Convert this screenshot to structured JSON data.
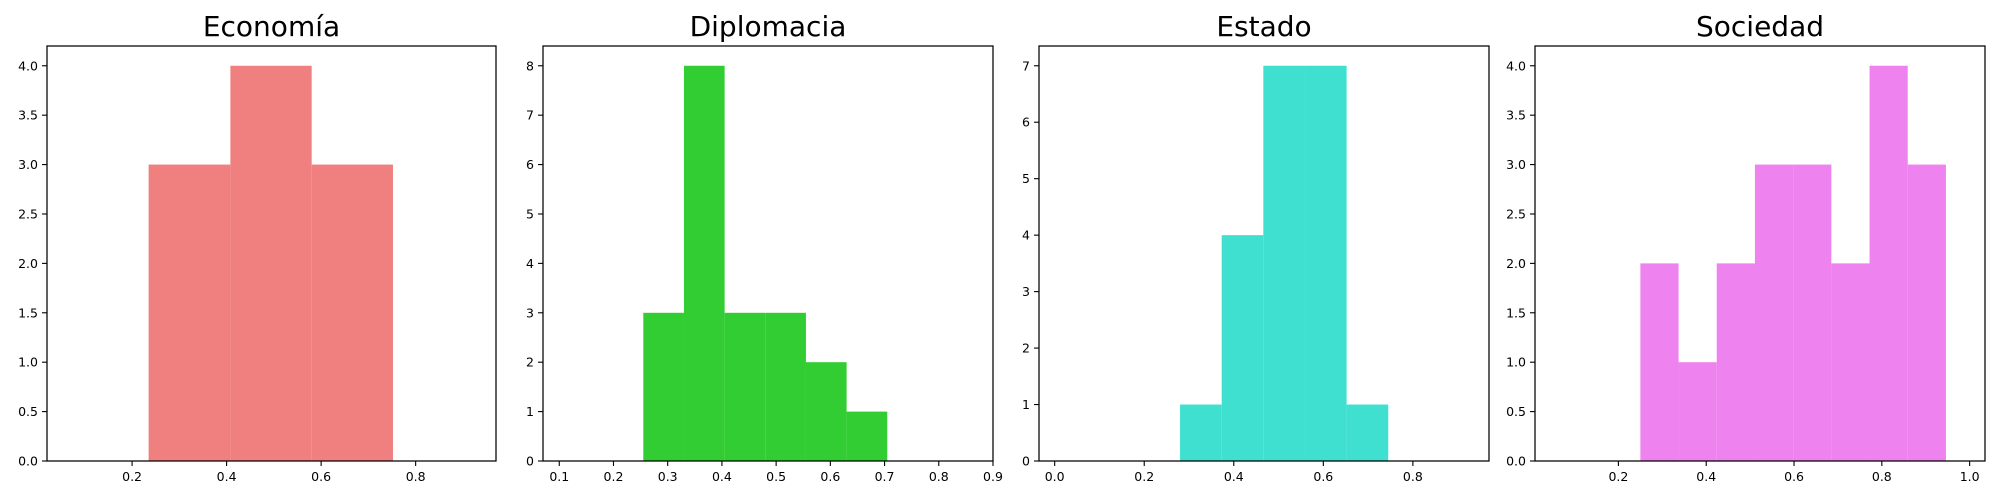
{
  "chart_data": [
    {
      "type": "bar",
      "title": "Economía",
      "color": "#f08080",
      "xlim": [
        0.02,
        0.97
      ],
      "ylim": [
        0,
        4.2
      ],
      "xticks": [
        "0.2",
        "0.4",
        "0.6",
        "0.8"
      ],
      "yticks": [
        "0.0",
        "0.5",
        "1.0",
        "1.5",
        "2.0",
        "2.5",
        "3.0",
        "3.5",
        "4.0"
      ],
      "bins": [
        {
          "x0": 0.235,
          "x1": 0.408,
          "count": 3
        },
        {
          "x0": 0.408,
          "x1": 0.58,
          "count": 4
        },
        {
          "x0": 0.58,
          "x1": 0.752,
          "count": 3
        }
      ]
    },
    {
      "type": "bar",
      "title": "Diplomacia",
      "color": "#32cd32",
      "xlim": [
        0.07,
        0.9
      ],
      "ylim": [
        0,
        8.4
      ],
      "xticks": [
        "0.1",
        "0.2",
        "0.3",
        "0.4",
        "0.5",
        "0.6",
        "0.7",
        "0.8",
        "0.9"
      ],
      "yticks": [
        "0",
        "1",
        "2",
        "3",
        "4",
        "5",
        "6",
        "7",
        "8"
      ],
      "bins": [
        {
          "x0": 0.255,
          "x1": 0.33,
          "count": 3
        },
        {
          "x0": 0.33,
          "x1": 0.405,
          "count": 8
        },
        {
          "x0": 0.405,
          "x1": 0.48,
          "count": 3
        },
        {
          "x0": 0.48,
          "x1": 0.555,
          "count": 3
        },
        {
          "x0": 0.555,
          "x1": 0.63,
          "count": 2
        },
        {
          "x0": 0.63,
          "x1": 0.705,
          "count": 1
        }
      ]
    },
    {
      "type": "bar",
      "title": "Estado",
      "color": "#40e0d0",
      "xlim": [
        -0.035,
        0.97
      ],
      "ylim": [
        0,
        7.35
      ],
      "xticks": [
        "0.0",
        "0.2",
        "0.4",
        "0.6",
        "0.8"
      ],
      "yticks": [
        "0",
        "1",
        "2",
        "3",
        "4",
        "5",
        "6",
        "7"
      ],
      "bins": [
        {
          "x0": 0.28,
          "x1": 0.373,
          "count": 1
        },
        {
          "x0": 0.373,
          "x1": 0.466,
          "count": 4
        },
        {
          "x0": 0.466,
          "x1": 0.559,
          "count": 7
        },
        {
          "x0": 0.559,
          "x1": 0.652,
          "count": 7
        },
        {
          "x0": 0.652,
          "x1": 0.745,
          "count": 1
        }
      ]
    },
    {
      "type": "bar",
      "title": "Sociedad",
      "color": "#ee82ee",
      "xlim": [
        0.01,
        1.035
      ],
      "ylim": [
        0,
        4.2
      ],
      "xticks": [
        "0.2",
        "0.4",
        "0.6",
        "0.8",
        "1.0"
      ],
      "yticks": [
        "0.0",
        "0.5",
        "1.0",
        "1.5",
        "2.0",
        "2.5",
        "3.0",
        "3.5",
        "4.0"
      ],
      "bins": [
        {
          "x0": 0.25,
          "x1": 0.337,
          "count": 2
        },
        {
          "x0": 0.337,
          "x1": 0.424,
          "count": 1
        },
        {
          "x0": 0.424,
          "x1": 0.511,
          "count": 2
        },
        {
          "x0": 0.511,
          "x1": 0.598,
          "count": 3
        },
        {
          "x0": 0.598,
          "x1": 0.685,
          "count": 3
        },
        {
          "x0": 0.685,
          "x1": 0.772,
          "count": 2
        },
        {
          "x0": 0.772,
          "x1": 0.859,
          "count": 4
        },
        {
          "x0": 0.859,
          "x1": 0.946,
          "count": 3
        }
      ]
    }
  ]
}
